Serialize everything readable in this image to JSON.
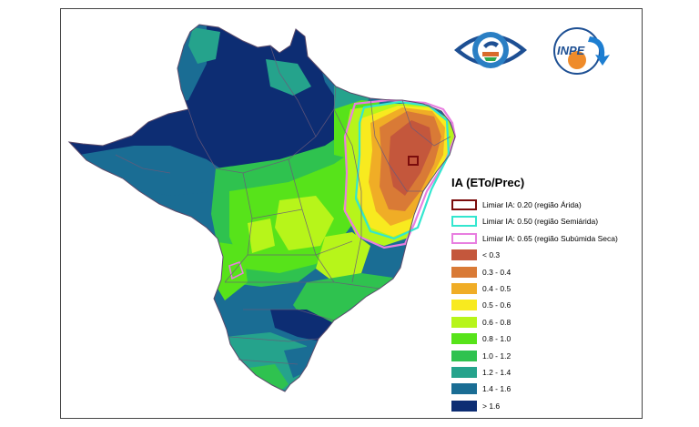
{
  "legend": {
    "title": "IA (ETo/Prec)",
    "thresholds": [
      {
        "label": "Limiar IA: 0.20 (região Árida)",
        "color": "#7b0c0c"
      },
      {
        "label": "Limiar IA: 0.50 (região Semiárida)",
        "color": "#33e6cf"
      },
      {
        "label": "Limiar IA: 0.65 (região Subúmida Seca)",
        "color": "#e87ee0"
      }
    ],
    "classes": [
      {
        "label": "< 0.3",
        "color": "#c4573c"
      },
      {
        "label": "0.3 - 0.4",
        "color": "#d97a36"
      },
      {
        "label": "0.4 - 0.5",
        "color": "#f0ad26"
      },
      {
        "label": "0.5 - 0.6",
        "color": "#f8ea1f"
      },
      {
        "label": "0.6 - 0.8",
        "color": "#b7f51a"
      },
      {
        "label": "0.8 - 1.0",
        "color": "#57e31a"
      },
      {
        "label": "1.0 - 1.2",
        "color": "#2fc24f"
      },
      {
        "label": "1.2 - 1.4",
        "color": "#25a38c"
      },
      {
        "label": "1.4 - 1.6",
        "color": "#1a6d94"
      },
      {
        "label": "> 1.6",
        "color": "#0d2d73"
      }
    ]
  },
  "logos": {
    "inpe_text": "INPE"
  }
}
